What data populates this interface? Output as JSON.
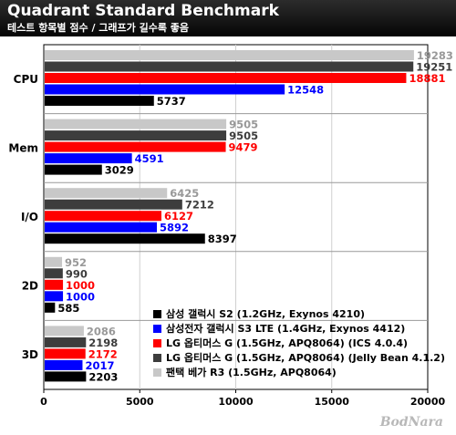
{
  "header": {
    "title": "Quadrant Standard Benchmark",
    "subtitle": "테스트 항목별 점수 / 그래프가 길수록 좋음"
  },
  "watermark": "BodNara",
  "chart_data": {
    "type": "bar",
    "orientation": "horizontal",
    "title": "Quadrant Standard Benchmark",
    "subtitle": "테스트 항목별 점수 / 그래프가 길수록 좋음",
    "categories": [
      "CPU",
      "Mem",
      "I/O",
      "2D",
      "3D"
    ],
    "xlim": [
      0,
      20000
    ],
    "xticks": [
      "0",
      "5000",
      "10000",
      "15000",
      "20000"
    ],
    "grid": true,
    "legend_position": "bottom-right",
    "series": [
      {
        "name": "팬택 베가 R3 (1.5GHz, APQ8064)",
        "color": "#c8c8c8",
        "label_color": "#999999",
        "values": [
          19283,
          9505,
          6425,
          952,
          2086
        ]
      },
      {
        "name": "LG 옵티머스 G (1.5GHz, APQ8064) (Jelly Bean 4.1.2)",
        "color": "#3d3d3d",
        "label_color": "#3d3d3d",
        "values": [
          19251,
          9505,
          7212,
          990,
          2198
        ]
      },
      {
        "name": "LG 옵티머스 G (1.5GHz, APQ8064) (ICS 4.0.4)",
        "color": "#ff0000",
        "label_color": "#ff0000",
        "values": [
          18881,
          9479,
          6127,
          1000,
          2172
        ]
      },
      {
        "name": "삼성전자 갤럭시 S3 LTE (1.4GHz, Exynos 4412)",
        "color": "#0000ff",
        "label_color": "#0000ff",
        "values": [
          12548,
          4591,
          5892,
          1000,
          2017
        ]
      },
      {
        "name": "삼성 갤럭시 S2 (1.2GHz, Exynos 4210)",
        "color": "#000000",
        "label_color": "#000000",
        "values": [
          5737,
          3029,
          8397,
          585,
          2203
        ]
      }
    ],
    "legend_order": [
      4,
      3,
      2,
      1,
      0
    ]
  }
}
